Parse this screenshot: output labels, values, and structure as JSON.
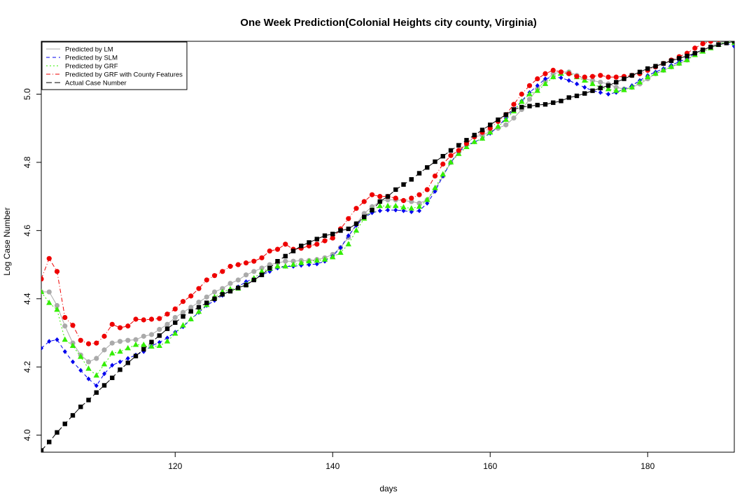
{
  "chart_data": {
    "type": "line",
    "title": "One Week Prediction(Colonial Heights city county, Virginia)",
    "xlabel": "days",
    "ylabel": "Log Case Number",
    "xlim": [
      103,
      191
    ],
    "ylim": [
      3.95,
      5.155
    ],
    "xticks": [
      120,
      140,
      160,
      180
    ],
    "yticks": [
      4.0,
      4.2,
      4.4,
      4.6,
      4.8,
      5.0
    ],
    "legend_position": "top-left",
    "grid": false,
    "x_start": 103,
    "x_step": 1,
    "series": [
      {
        "name": "Predicted by LM",
        "color": "#aaaaaa",
        "marker": "circle",
        "dash": "none",
        "values": [
          4.42,
          4.42,
          4.38,
          4.32,
          4.27,
          4.235,
          4.215,
          4.225,
          4.25,
          4.27,
          4.275,
          4.278,
          4.28,
          4.29,
          4.295,
          4.31,
          4.325,
          4.345,
          4.36,
          4.375,
          4.39,
          4.405,
          4.42,
          4.43,
          4.445,
          4.455,
          4.47,
          4.48,
          4.49,
          4.5,
          4.505,
          4.51,
          4.51,
          4.512,
          4.512,
          4.515,
          4.52,
          4.53,
          4.55,
          4.58,
          4.62,
          4.65,
          4.67,
          4.685,
          4.69,
          4.69,
          4.688,
          4.685,
          4.68,
          4.69,
          4.72,
          4.76,
          4.8,
          4.83,
          4.855,
          4.875,
          4.88,
          4.89,
          4.9,
          4.91,
          4.93,
          4.955,
          4.985,
          5.015,
          5.04,
          5.06,
          5.065,
          5.065,
          5.055,
          5.045,
          5.04,
          5.035,
          5.03,
          5.02,
          5.015,
          5.02,
          5.03,
          5.045,
          5.06,
          5.07,
          5.08,
          5.09,
          5.1,
          5.12,
          5.13,
          5.14,
          5.15,
          5.155,
          5.155
        ]
      },
      {
        "name": "Predicted by SLM",
        "color": "#0000ee",
        "marker": "diamond",
        "dash": "5,4",
        "values": [
          4.255,
          4.275,
          4.28,
          4.245,
          4.215,
          4.19,
          4.165,
          4.145,
          4.18,
          4.205,
          4.215,
          4.225,
          4.235,
          4.245,
          4.262,
          4.272,
          4.285,
          4.302,
          4.318,
          4.34,
          4.36,
          4.38,
          4.395,
          4.41,
          4.425,
          4.435,
          4.45,
          4.46,
          4.47,
          4.48,
          4.49,
          4.495,
          4.495,
          4.498,
          4.5,
          4.502,
          4.51,
          4.525,
          4.55,
          4.585,
          4.615,
          4.638,
          4.652,
          4.658,
          4.66,
          4.66,
          4.658,
          4.655,
          4.658,
          4.68,
          4.715,
          4.76,
          4.8,
          4.83,
          4.85,
          4.86,
          4.87,
          4.885,
          4.905,
          4.93,
          4.955,
          4.98,
          5.005,
          5.025,
          5.045,
          5.05,
          5.048,
          5.04,
          5.03,
          5.02,
          5.01,
          5.005,
          5.0,
          5.005,
          5.015,
          5.025,
          5.04,
          5.055,
          5.065,
          5.075,
          5.085,
          5.095,
          5.105,
          5.12,
          5.13,
          5.138,
          5.145,
          5.15,
          5.14
        ]
      },
      {
        "name": "Predicted by GRF",
        "color": "#33ee00",
        "marker": "triangle",
        "dash": "2,3",
        "values": [
          4.42,
          4.388,
          4.368,
          4.28,
          4.262,
          4.23,
          4.195,
          4.175,
          4.208,
          4.24,
          4.245,
          4.255,
          4.265,
          4.265,
          4.26,
          4.262,
          4.275,
          4.298,
          4.322,
          4.34,
          4.362,
          4.382,
          4.405,
          4.42,
          4.428,
          4.43,
          4.442,
          4.46,
          4.48,
          4.488,
          4.495,
          4.495,
          4.5,
          4.505,
          4.51,
          4.512,
          4.515,
          4.522,
          4.535,
          4.56,
          4.6,
          4.635,
          4.66,
          4.672,
          4.672,
          4.672,
          4.668,
          4.665,
          4.67,
          4.69,
          4.725,
          4.765,
          4.8,
          4.825,
          4.845,
          4.86,
          4.87,
          4.888,
          4.905,
          4.925,
          4.95,
          4.978,
          5.0,
          5.01,
          5.03,
          5.05,
          5.06,
          5.062,
          5.05,
          5.04,
          5.03,
          5.02,
          5.015,
          5.01,
          5.012,
          5.02,
          5.035,
          5.05,
          5.06,
          5.07,
          5.08,
          5.09,
          5.1,
          5.115,
          5.125,
          5.135,
          5.145,
          5.155,
          5.15
        ]
      },
      {
        "name": "Predicted by GRF with County Features",
        "color": "#ee0000",
        "marker": "circle",
        "dash": "6,3,1,3",
        "values": [
          4.458,
          4.518,
          4.48,
          4.345,
          4.322,
          4.278,
          4.268,
          4.27,
          4.29,
          4.325,
          4.315,
          4.32,
          4.34,
          4.338,
          4.34,
          4.342,
          4.355,
          4.37,
          4.392,
          4.408,
          4.43,
          4.455,
          4.468,
          4.48,
          4.495,
          4.5,
          4.505,
          4.51,
          4.52,
          4.54,
          4.545,
          4.56,
          4.545,
          4.548,
          4.555,
          4.56,
          4.57,
          4.578,
          4.605,
          4.635,
          4.665,
          4.685,
          4.705,
          4.7,
          4.7,
          4.695,
          4.688,
          4.695,
          4.705,
          4.72,
          4.76,
          4.795,
          4.82,
          4.835,
          4.855,
          4.875,
          4.888,
          4.9,
          4.92,
          4.94,
          4.97,
          5.0,
          5.025,
          5.045,
          5.06,
          5.07,
          5.065,
          5.06,
          5.052,
          5.05,
          5.052,
          5.055,
          5.05,
          5.05,
          5.052,
          5.055,
          5.06,
          5.07,
          5.08,
          5.09,
          5.1,
          5.11,
          5.12,
          5.135,
          5.148,
          5.155,
          5.16,
          5.16,
          5.158
        ]
      },
      {
        "name": "Actual Case Number",
        "color": "#000000",
        "marker": "square",
        "dash": "8,4",
        "values": [
          3.955,
          3.98,
          4.008,
          4.033,
          4.058,
          4.083,
          4.103,
          4.125,
          4.146,
          4.168,
          4.192,
          4.212,
          4.232,
          4.252,
          4.273,
          4.292,
          4.312,
          4.33,
          4.348,
          4.363,
          4.375,
          4.388,
          4.4,
          4.413,
          4.422,
          4.432,
          4.44,
          4.455,
          4.47,
          4.49,
          4.51,
          4.525,
          4.54,
          4.555,
          4.565,
          4.575,
          4.585,
          4.59,
          4.6,
          4.605,
          4.62,
          4.64,
          4.66,
          4.685,
          4.7,
          4.72,
          4.735,
          4.75,
          4.768,
          4.785,
          4.802,
          4.818,
          4.835,
          4.85,
          4.865,
          4.88,
          4.895,
          4.91,
          4.925,
          4.94,
          4.955,
          4.962,
          4.965,
          4.968,
          4.97,
          4.975,
          4.98,
          4.99,
          4.995,
          5.002,
          5.01,
          5.018,
          5.025,
          5.035,
          5.045,
          5.055,
          5.065,
          5.075,
          5.082,
          5.09,
          5.098,
          5.105,
          5.112,
          5.12,
          5.13,
          5.138,
          5.145,
          5.15,
          5.155
        ]
      }
    ]
  }
}
